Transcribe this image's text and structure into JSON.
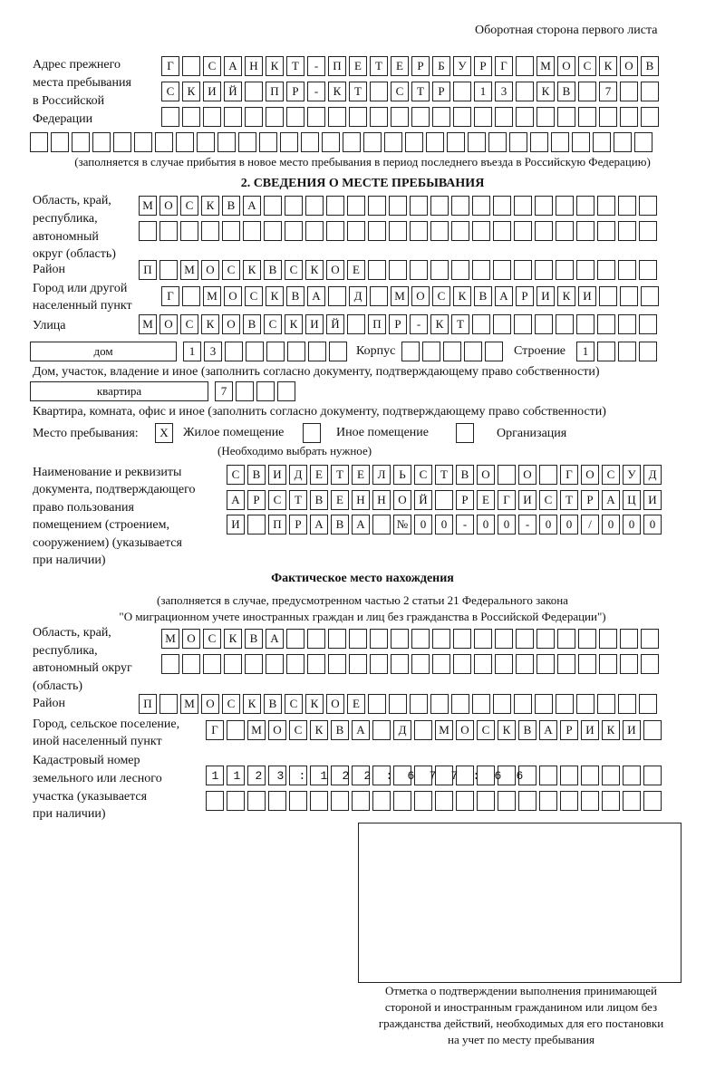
{
  "header": "Оборотная сторона первого листа",
  "prev_address": {
    "label": [
      "Адрес прежнего",
      "места пребывания",
      "в Российской",
      "Федерации"
    ],
    "rows": [
      "Г САНКТ-ПЕТЕРБУРГ МОСКОВ",
      "СКИЙ ПР-КТ СТР 13 КВ 7",
      ""
    ],
    "extra_row": "",
    "note": "(заполняется в случае прибытия в новое место пребывания в период последнего въезда в Российскую Федерацию)"
  },
  "section2": {
    "title": "2. СВЕДЕНИЯ О МЕСТЕ ПРЕБЫВАНИЯ",
    "region_label": [
      "Область, край,",
      "республика,",
      "автономный",
      "округ (область)"
    ],
    "region_rows": [
      "МОСКВА",
      ""
    ],
    "district_label": "Район",
    "district": "П МОСКВСКОЕ",
    "city_label": [
      "Город или другой",
      "населенный пункт"
    ],
    "city": "Г МОСКВА Д МОСКВАРИКИ",
    "street_label": "Улица",
    "street": "МОСКОВСКИЙ ПР-КТ",
    "house_type": "дом",
    "house": "13",
    "korpus_label": "Корпус",
    "korpus": "",
    "building_label": "Строение",
    "building": "1",
    "house_note": "Дом, участок, владение и иное (заполнить согласно документу, подтверждающему право собственности)",
    "flat_type": "квартира",
    "flat": "7",
    "flat_note": "Квартира, комната, офис и иное (заполнить согласно документу, подтверждающему право собственности)",
    "stay_label": "Место пребывания:",
    "stay_options": [
      {
        "mark": "X",
        "label": "Жилое помещение",
        "checked": true
      },
      {
        "mark": "",
        "label": "Иное помещение",
        "checked": false
      },
      {
        "mark": "",
        "label": "Организация",
        "checked": false
      }
    ],
    "stay_note": "(Необходимо выбрать нужное)",
    "doc_label": [
      "Наименование и реквизиты",
      "документа, подтверждающего",
      "право пользования",
      "помещением (строением,",
      "сооружением) (указывается",
      "при наличии)"
    ],
    "doc_rows": [
      "СВИДЕТЕЛЬСТВО О ГОСУД",
      "АРСТВЕННОЙ РЕГИСТРАЦИ",
      "И ПРАВА №00-00-00/000"
    ]
  },
  "actual": {
    "title": "Фактическое место нахождения",
    "note": [
      "(заполняется в случае, предусмотренном частью 2 статьи 21 Федерального закона",
      "\"О миграционном учете иностранных граждан и лиц без гражданства в Российской Федерации\")"
    ],
    "region_label": [
      "Область, край,",
      "республика,",
      "автономный округ",
      "(область)"
    ],
    "region_rows": [
      "МОСКВА",
      ""
    ],
    "district_label": "Район",
    "district": "П МОСКВСКОЕ",
    "city_label": [
      "Город, сельское поселение,",
      "иной населенный пункт"
    ],
    "city": "Г МОСКВА Д МОСКВАРИКИ",
    "cadastre_label": [
      "Кадастровый номер",
      "земельного или лесного",
      "участка (указывается",
      "при наличии)"
    ],
    "cadastre_rows": [
      "1123:122:677:66",
      ""
    ]
  },
  "stamp_caption": [
    "Отметка о подтверждении выполнения принимающей",
    "стороной и иностранным гражданином или лицом без",
    "гражданства действий, необходимых для его постановки",
    "на учет по месту пребывания"
  ]
}
